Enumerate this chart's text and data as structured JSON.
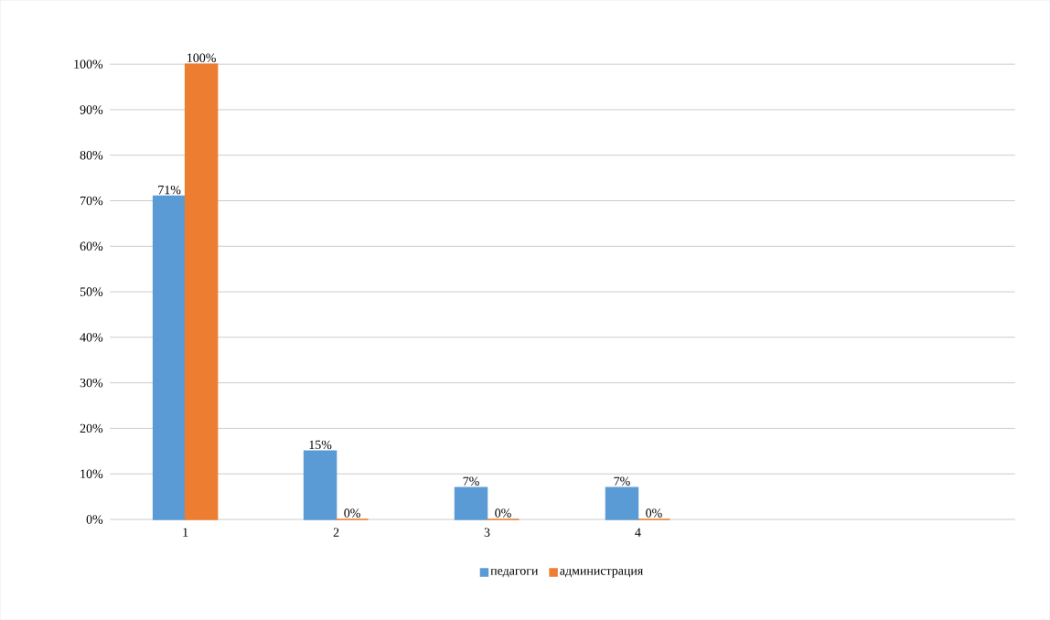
{
  "chart_data": {
    "type": "bar",
    "categories": [
      "1",
      "2",
      "3",
      "4",
      null,
      null
    ],
    "series": [
      {
        "name": "педагоги",
        "color": "#5b9bd5",
        "values": [
          71,
          15,
          7,
          7,
          null,
          null
        ],
        "value_labels": [
          "71%",
          "15%",
          "7%",
          "7%",
          null,
          null
        ]
      },
      {
        "name": "администрация",
        "color": "#ed7d31",
        "values": [
          100,
          0,
          0,
          0,
          null,
          null
        ],
        "value_labels": [
          "100%",
          "0%",
          "0%",
          "0%",
          null,
          null
        ]
      }
    ],
    "ylim": [
      0,
      100
    ],
    "yticks": [
      {
        "value": 0,
        "label": "0%"
      },
      {
        "value": 10,
        "label": "10%"
      },
      {
        "value": 20,
        "label": "20%"
      },
      {
        "value": 30,
        "label": "30%"
      },
      {
        "value": 40,
        "label": "40%"
      },
      {
        "value": 50,
        "label": "50%"
      },
      {
        "value": 60,
        "label": "60%"
      },
      {
        "value": 70,
        "label": "70%"
      },
      {
        "value": 80,
        "label": "80%"
      },
      {
        "value": 90,
        "label": "90%"
      },
      {
        "value": 100,
        "label": "100%"
      }
    ],
    "grid": "y",
    "legend": "bottom"
  }
}
